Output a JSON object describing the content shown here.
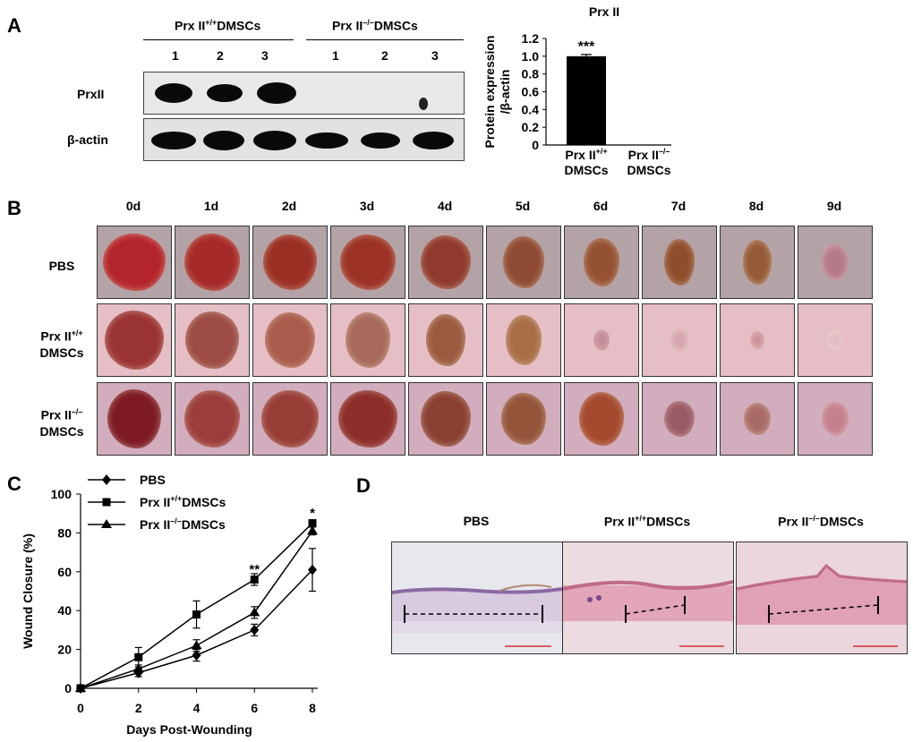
{
  "panel_labels": {
    "a": "A",
    "b": "B",
    "c": "C",
    "d": "D"
  },
  "blot": {
    "group_left": "Prx II",
    "group_left_sup": "+/+",
    "group_left_suffix": "DMSCs",
    "group_right": "Prx II",
    "group_right_sup": "–/–",
    "group_right_suffix": "DMSCs",
    "lanes": [
      "1",
      "2",
      "3",
      "1",
      "2",
      "3"
    ],
    "row1_label": "PrxII",
    "row2_label": "β-actin"
  },
  "wound_panel": {
    "days": [
      "0d",
      "1d",
      "2d",
      "3d",
      "4d",
      "5d",
      "6d",
      "7d",
      "8d",
      "9d"
    ],
    "row_pbs": "PBS",
    "row_wt_line1": "Prx II",
    "row_wt_sup": "+/+",
    "row_wt_line2": "DMSCs",
    "row_ko_line1": "Prx II",
    "row_ko_sup": "–/–",
    "row_ko_line2": "DMSCs"
  },
  "histology": {
    "titles": [
      {
        "main": "PBS",
        "sup": "",
        "suffix": ""
      },
      {
        "main": "Prx II",
        "sup": "+/+",
        "suffix": "DMSCs"
      },
      {
        "main": "Prx II",
        "sup": "–/–",
        "suffix": "DMSCs"
      }
    ]
  },
  "chart_data": [
    {
      "type": "bar",
      "title": "Prx II",
      "ylabel_line1": "Protein expression",
      "ylabel_line2": "/β-actin",
      "categories": [
        {
          "line1": "Prx II",
          "sup": "+/+",
          "line2": "DMSCs"
        },
        {
          "line1": "Prx II",
          "sup": "–/–",
          "line2": "DMSCs"
        }
      ],
      "values": [
        1.0,
        0.0
      ],
      "errors": [
        0.02,
        0.0
      ],
      "significance": [
        "***",
        ""
      ],
      "ylim": [
        0,
        1.2
      ],
      "yticks": [
        "0",
        "0.2",
        "0.4",
        "0.6",
        "0.8",
        "1.0",
        "1.2"
      ],
      "colors": {
        "bar": "#000000"
      }
    },
    {
      "type": "line",
      "xlabel": "Days Post-Wounding",
      "ylabel": "Wound Closure (%)",
      "x": [
        0,
        2,
        4,
        6,
        8
      ],
      "xlim": [
        0,
        8
      ],
      "ylim": [
        0,
        100
      ],
      "xticks": [
        "0",
        "2",
        "4",
        "6",
        "8"
      ],
      "yticks": [
        "0",
        "20",
        "40",
        "60",
        "80",
        "100"
      ],
      "series": [
        {
          "name": "PBS",
          "sup": "",
          "suffix": "",
          "marker": "diamond",
          "values": [
            0,
            8,
            17,
            30,
            61
          ],
          "errors": [
            0,
            2,
            3,
            3,
            11
          ]
        },
        {
          "name": "Prx II",
          "sup": "+/+",
          "suffix": "DMSCs",
          "marker": "square",
          "values": [
            0,
            16,
            38,
            56,
            85
          ],
          "errors": [
            0,
            5,
            7,
            3,
            1
          ]
        },
        {
          "name": "Prx II",
          "sup": "–/–",
          "suffix": "DMSCs",
          "marker": "triangle",
          "values": [
            0,
            10,
            22,
            39,
            81
          ],
          "errors": [
            0,
            2,
            3,
            3,
            2
          ]
        }
      ],
      "annotations": [
        {
          "x": 6,
          "y": 59,
          "text": "**"
        },
        {
          "x": 8,
          "y": 88,
          "text": "*"
        }
      ],
      "legend": "top-left"
    }
  ]
}
